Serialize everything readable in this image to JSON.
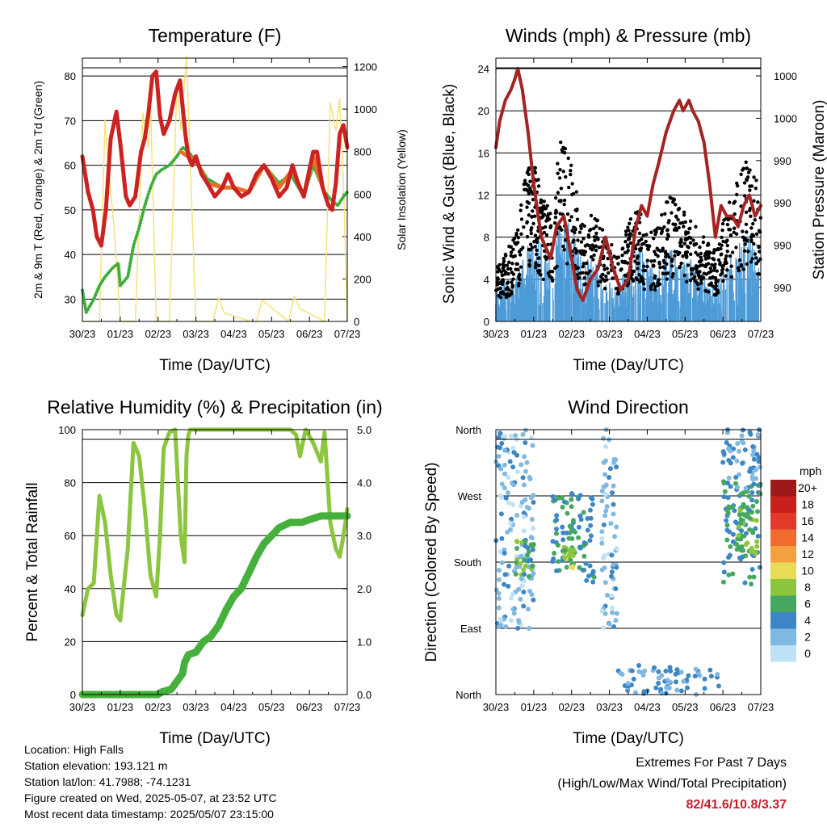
{
  "colors": {
    "temp": "#cc2222",
    "temp9m": "#e8702a",
    "dewpoint": "#3fae3f",
    "solar": "#f6e27a",
    "gust": "#000000",
    "wind": "#4d9ad6",
    "pressure": "#a52323",
    "rh": "#8cc63f",
    "precip": "#45b03c",
    "extremes": "#c41e2a"
  },
  "chart_data": [
    {
      "type": "line",
      "title": "Temperature (F)",
      "xlabel": "Time (Day/UTC)",
      "ylabel": "2m & 9m T (Red, Orange) & 2m Td (Green)",
      "y2label": "Solar Insolation (Yellow)",
      "xticks": [
        "30/23",
        "01/23",
        "02/23",
        "03/23",
        "04/23",
        "05/23",
        "06/23",
        "07/23"
      ],
      "ylim": [
        25,
        84
      ],
      "yticks": [
        30,
        40,
        50,
        60,
        70,
        80
      ],
      "y2lim": [
        0,
        1240
      ],
      "y2ticks": [
        0,
        200,
        400,
        600,
        800,
        1000,
        1200
      ],
      "grid": true,
      "series": [
        {
          "name": "2m T",
          "color_key": "temp",
          "x": [
            0,
            0.15,
            0.28,
            0.38,
            0.5,
            0.62,
            0.75,
            0.9,
            1.0,
            1.15,
            1.25,
            1.4,
            1.55,
            1.65,
            1.75,
            1.85,
            1.95,
            2.05,
            2.15,
            2.3,
            2.45,
            2.58,
            2.65,
            2.72,
            2.8,
            2.9,
            3.0,
            3.15,
            3.3,
            3.5,
            3.7,
            3.85,
            4.0,
            4.2,
            4.4,
            4.6,
            4.8,
            5.0,
            5.2,
            5.4,
            5.55,
            5.7,
            5.85,
            5.95,
            6.1,
            6.2,
            6.35,
            6.5,
            6.6,
            6.7,
            6.8,
            6.9,
            7.0
          ],
          "y": [
            62,
            54,
            50,
            44,
            42,
            50,
            66,
            72,
            65,
            53,
            51,
            53,
            63,
            66,
            72,
            80,
            81,
            71,
            67,
            70,
            76,
            79,
            73,
            67,
            62,
            60,
            62,
            58,
            56,
            53,
            55,
            58,
            55,
            53,
            54,
            58,
            60,
            57,
            53,
            55,
            60,
            56,
            53,
            57,
            63,
            63,
            55,
            51,
            50,
            56,
            67,
            69,
            64
          ]
        },
        {
          "name": "9m T",
          "color_key": "temp9m",
          "x": [
            2.6,
            2.8,
            3.0,
            3.3,
            3.7,
            4.0,
            4.4,
            4.8,
            5.2,
            5.55,
            5.85,
            6.1,
            6.35
          ],
          "y": [
            63,
            62,
            61,
            56,
            55,
            55,
            54,
            60,
            55,
            59,
            53,
            62,
            55
          ]
        },
        {
          "name": "2m Td",
          "color_key": "dewpoint",
          "x": [
            0,
            0.1,
            0.3,
            0.45,
            0.6,
            0.8,
            0.95,
            1.0,
            1.2,
            1.35,
            1.5,
            1.65,
            1.8,
            1.95,
            2.1,
            2.3,
            2.5,
            2.65,
            2.8,
            3.0,
            3.3,
            3.7,
            4.0,
            4.4,
            4.8,
            5.2,
            5.5,
            5.85,
            6.1,
            6.4,
            6.6,
            6.75,
            6.9,
            7.0
          ],
          "y": [
            32,
            27,
            30,
            33,
            35,
            37,
            38,
            33,
            35,
            42,
            46,
            51,
            55,
            58,
            59,
            60,
            62,
            64,
            63,
            61,
            57,
            55,
            55,
            54,
            60,
            56,
            58,
            53,
            60,
            54,
            52,
            51,
            53,
            54
          ]
        },
        {
          "name": "Solar Insolation",
          "color_key": "solar",
          "axis": "y2",
          "x": [
            0,
            0.45,
            0.6,
            0.7,
            0.85,
            1.0,
            1.4,
            1.6,
            1.75,
            1.8,
            1.95,
            2.3,
            2.5,
            2.6,
            2.75,
            3.0,
            3.45,
            3.6,
            3.75,
            4.45,
            4.6,
            4.75,
            5.45,
            5.6,
            5.75,
            6.4,
            6.55,
            6.7,
            6.8,
            6.9,
            7.0
          ],
          "y": [
            0,
            0,
            950,
            700,
            420,
            0,
            0,
            980,
            820,
            1050,
            0,
            0,
            1120,
            900,
            1250,
            0,
            0,
            110,
            40,
            0,
            0,
            100,
            0,
            120,
            60,
            0,
            1030,
            900,
            1050,
            650,
            0
          ]
        }
      ]
    },
    {
      "type": "line",
      "title": "Winds (mph) & Pressure (mb)",
      "xlabel": "Time (Day/UTC)",
      "ylabel": "Sonic Wind & Gust (Blue, Black)",
      "y2label": "Station Pressure (Maroon)",
      "xticks": [
        "30/23",
        "01/23",
        "02/23",
        "03/23",
        "04/23",
        "05/23",
        "06/23",
        "07/23"
      ],
      "ylim": [
        0,
        25
      ],
      "yticks": [
        0,
        4,
        8,
        12,
        16,
        20,
        24
      ],
      "y2ticks": [
        "990",
        "990",
        "990",
        "990",
        "1000",
        "1000"
      ],
      "grid": true,
      "series": [
        {
          "name": "Sonic Wind",
          "color_key": "wind",
          "x": [
            0,
            0.3,
            0.6,
            0.8,
            1.0,
            1.2,
            1.5,
            1.7,
            2.0,
            2.3,
            2.6,
            2.9,
            3.2,
            3.5,
            3.8,
            4.0,
            4.3,
            4.6,
            4.9,
            5.2,
            5.5,
            5.8,
            6.1,
            6.4,
            6.7,
            7.0
          ],
          "y": [
            2,
            3,
            3,
            5,
            6,
            5,
            4,
            7,
            6,
            4,
            4,
            3,
            2,
            4,
            5,
            4,
            4,
            5,
            4,
            4,
            3,
            2,
            4,
            5,
            6,
            3
          ]
        },
        {
          "name": "Gust",
          "color_key": "gust",
          "x": [
            0,
            0.3,
            0.6,
            0.8,
            1.0,
            1.2,
            1.5,
            1.7,
            2.0,
            2.3,
            2.6,
            2.9,
            3.2,
            3.5,
            3.8,
            4.0,
            4.3,
            4.6,
            4.9,
            5.2,
            5.5,
            5.8,
            6.1,
            6.4,
            6.7,
            7.0
          ],
          "y": [
            4,
            5,
            7,
            11,
            12,
            9,
            8,
            14,
            11,
            7,
            8,
            6,
            5,
            7,
            8,
            6,
            7,
            9,
            8,
            7,
            6,
            5,
            8,
            10,
            12,
            9
          ]
        },
        {
          "name": "Station Pressure",
          "color_key": "pressure",
          "x": [
            0,
            0.1,
            0.25,
            0.4,
            0.5,
            0.58,
            0.7,
            0.85,
            1.0,
            1.2,
            1.45,
            1.6,
            1.8,
            2.0,
            2.15,
            2.3,
            2.5,
            2.7,
            2.9,
            3.1,
            3.3,
            3.5,
            3.7,
            3.85,
            4.0,
            4.15,
            4.3,
            4.5,
            4.7,
            4.85,
            4.95,
            5.1,
            5.2,
            5.35,
            5.5,
            5.65,
            5.8,
            5.95,
            6.1,
            6.25,
            6.4,
            6.55,
            6.7,
            6.85,
            7.0
          ],
          "y": [
            16.5,
            19,
            21,
            22,
            23,
            24,
            22,
            18,
            13,
            8,
            6,
            9,
            10,
            6,
            3,
            2,
            4,
            5,
            8,
            5,
            3,
            4,
            9,
            11,
            10,
            13,
            15,
            18,
            20,
            21,
            20,
            21,
            20,
            19,
            17,
            13,
            8,
            11,
            10,
            10,
            9,
            11,
            12,
            10,
            11
          ]
        }
      ]
    },
    {
      "type": "line",
      "title": "Relative Humidity (%) & Precipitation (in)",
      "xlabel": "Time (Day/UTC)",
      "ylabel": "Percent & Total Rainfall",
      "xticks": [
        "30/23",
        "01/23",
        "02/23",
        "03/23",
        "04/23",
        "05/23",
        "06/23",
        "07/23"
      ],
      "ylim": [
        0,
        100
      ],
      "yticks": [
        0,
        20,
        40,
        60,
        80,
        100
      ],
      "y2lim": [
        0,
        5.0
      ],
      "y2ticks": [
        "0.0",
        "1.0",
        "2.0",
        "3.0",
        "4.0",
        "5.0"
      ],
      "grid": true,
      "series": [
        {
          "name": "Relative Humidity",
          "color_key": "rh",
          "x": [
            0,
            0.15,
            0.3,
            0.45,
            0.6,
            0.75,
            0.9,
            1.0,
            1.2,
            1.35,
            1.5,
            1.65,
            1.8,
            1.95,
            2.05,
            2.15,
            2.3,
            2.45,
            2.6,
            2.7,
            2.75,
            2.8,
            2.85,
            3.0,
            3.3,
            3.7,
            4.0,
            4.4,
            4.8,
            5.2,
            5.5,
            5.65,
            5.75,
            5.9,
            6.1,
            6.3,
            6.4,
            6.55,
            6.7,
            6.8,
            6.9,
            7.0
          ],
          "y": [
            30,
            40,
            42,
            75,
            65,
            45,
            30,
            28,
            55,
            95,
            90,
            70,
            45,
            37,
            60,
            93,
            99,
            100,
            60,
            50,
            90,
            98,
            100,
            100,
            100,
            100,
            100,
            100,
            100,
            100,
            100,
            98,
            90,
            100,
            95,
            88,
            99,
            65,
            55,
            52,
            60,
            70
          ]
        },
        {
          "name": "Total Precipitation",
          "color_key": "precip",
          "axis": "y2",
          "x": [
            0,
            1.0,
            2.0,
            2.1,
            2.35,
            2.65,
            2.7,
            2.8,
            3.0,
            3.2,
            3.4,
            3.6,
            3.8,
            4.0,
            4.2,
            4.4,
            4.6,
            4.8,
            5.0,
            5.2,
            5.35,
            5.5,
            5.6,
            5.8,
            6.0,
            6.3,
            6.6,
            7.0
          ],
          "y": [
            0,
            0,
            0,
            0.05,
            0.1,
            0.4,
            0.6,
            0.75,
            0.8,
            1.0,
            1.1,
            1.3,
            1.6,
            1.85,
            2.0,
            2.3,
            2.6,
            2.85,
            3.0,
            3.15,
            3.2,
            3.25,
            3.25,
            3.25,
            3.3,
            3.37,
            3.37,
            3.37
          ]
        }
      ]
    },
    {
      "type": "scatter",
      "title": "Wind Direction",
      "xlabel": "Time (Day/UTC)",
      "ylabel": "Direction (Colored By Speed)",
      "xticks": [
        "30/23",
        "01/23",
        "02/23",
        "03/23",
        "04/23",
        "05/23",
        "06/23",
        "07/23"
      ],
      "yticks": [
        "North",
        "East",
        "South",
        "West",
        "North"
      ],
      "legend_title": "mph",
      "legend_labels": [
        "20+",
        "18",
        "16",
        "14",
        "12",
        "10",
        "8",
        "6",
        "4",
        "2",
        "0"
      ],
      "legend_colors": [
        "#9e1a1a",
        "#c8201f",
        "#e03a2a",
        "#ef6b2e",
        "#f5a040",
        "#e6dc55",
        "#8cc63f",
        "#45a85e",
        "#3d86c6",
        "#7fb8e0",
        "#bde2f6"
      ],
      "clusters": [
        {
          "x0": 0.0,
          "x1": 1.0,
          "y0": 90,
          "y1": 360,
          "spd": 2
        },
        {
          "x0": 0.5,
          "x1": 1.0,
          "y0": 160,
          "y1": 210,
          "spd": 6
        },
        {
          "x0": 1.5,
          "x1": 2.6,
          "y0": 150,
          "y1": 280,
          "spd": 5
        },
        {
          "x0": 1.8,
          "x1": 2.1,
          "y0": 170,
          "y1": 200,
          "spd": 8
        },
        {
          "x0": 2.8,
          "x1": 3.2,
          "y0": 90,
          "y1": 360,
          "spd": 2
        },
        {
          "x0": 3.2,
          "x1": 5.9,
          "y0": 0,
          "y1": 40,
          "spd": 3
        },
        {
          "x0": 6.0,
          "x1": 7.0,
          "y0": 150,
          "y1": 290,
          "spd": 5
        },
        {
          "x0": 6.4,
          "x1": 6.9,
          "y0": 190,
          "y1": 260,
          "spd": 7
        },
        {
          "x0": 6.0,
          "x1": 7.0,
          "y0": 280,
          "y1": 360,
          "spd": 3
        }
      ]
    }
  ],
  "info": {
    "location": "Location: High Falls",
    "elevation": "Station elevation: 193.121 m",
    "latlon": "Station lat/lon: 41.7988; -74.1231",
    "created": "Figure created on Wed, 2025-05-07, at 23:52 UTC",
    "recent": "Most recent data timestamp: 2025/05/07 23:15:00"
  },
  "extremes": {
    "line1": "Extremes For Past 7 Days",
    "line2": "(High/Low/Max Wind/Total Precipitation)",
    "values": "82/41.6/10.8/3.37"
  }
}
